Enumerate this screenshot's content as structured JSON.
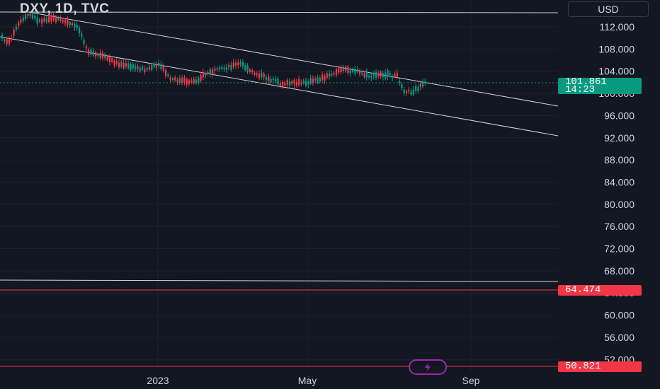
{
  "header": {
    "symbol": "DXY, 1D, TVC",
    "currency": "USD"
  },
  "price_axis": {
    "ticks": [
      "112.000",
      "108.000",
      "104.000",
      "100.000",
      "96.000",
      "92.000",
      "88.000",
      "84.000",
      "80.000",
      "76.000",
      "72.000",
      "68.000",
      "64.000",
      "60.000",
      "56.000",
      "52.000"
    ]
  },
  "time_axis": {
    "labels": [
      "2023",
      "May",
      "Sep"
    ]
  },
  "current_price": {
    "value": "101.861",
    "countdown": "14:23",
    "color": "#089981"
  },
  "levels": [
    {
      "value": "64.474",
      "color": "#f23645"
    },
    {
      "value": "50.821",
      "color": "#f23645"
    }
  ],
  "colors": {
    "background": "#131722",
    "up": "#089981",
    "down": "#f23645",
    "grid": "#1e2230",
    "trendline": "#d1d4dc"
  },
  "icons": {
    "bottom_button": "lightning-icon"
  }
}
